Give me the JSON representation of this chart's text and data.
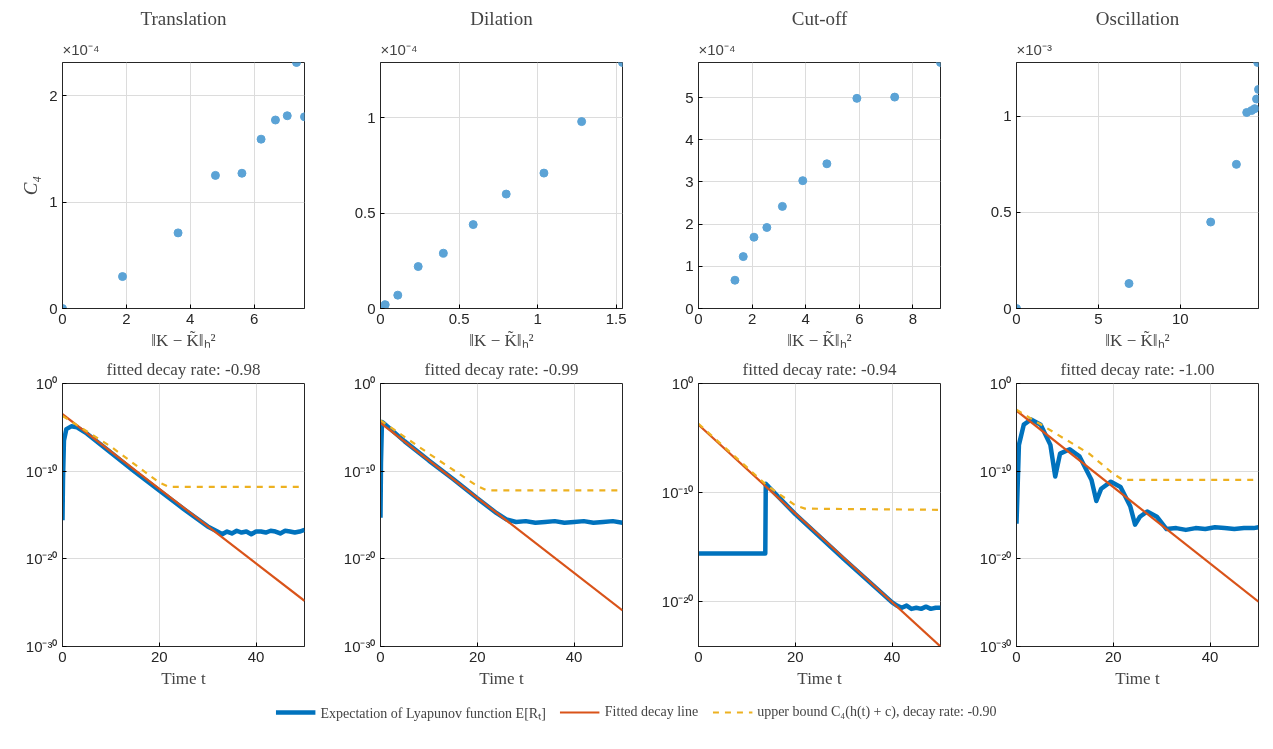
{
  "chart_data": [
    {
      "type": "scatter",
      "title": "Translation",
      "ylabel": "C₄",
      "xlabel": "‖K − K̃‖ₕ²",
      "annotations": [
        "×10⁻⁴"
      ],
      "marker": "circle",
      "grid": true,
      "xlim": [
        0,
        7.58
      ],
      "xticks": [
        0,
        2,
        4,
        6
      ],
      "ylim": [
        0,
        2.31
      ],
      "yticks": [
        0,
        1,
        2
      ],
      "series": [
        {
          "color": "#5ba3d6",
          "x": [
            0,
            1.88,
            3.62,
            4.79,
            5.62,
            6.22,
            6.67,
            7.04,
            7.33,
            7.58
          ],
          "values": [
            0,
            0.3,
            0.71,
            1.25,
            1.27,
            1.59,
            1.77,
            1.81,
            2.31,
            1.8
          ]
        }
      ]
    },
    {
      "type": "scatter",
      "title": "Dilation",
      "xlabel": "‖K − K̃‖ₕ²",
      "annotations": [
        "×10⁻⁴"
      ],
      "marker": "circle",
      "grid": true,
      "xlim": [
        0,
        1.54
      ],
      "xticks": [
        0,
        0.5,
        1,
        1.5
      ],
      "ylim": [
        0,
        1.29
      ],
      "yticks": [
        0,
        0.5,
        1
      ],
      "series": [
        {
          "color": "#5ba3d6",
          "x": [
            0,
            0.03,
            0.11,
            0.24,
            0.4,
            0.59,
            0.8,
            1.04,
            1.28,
            1.54
          ],
          "values": [
            0,
            0.02,
            0.07,
            0.22,
            0.29,
            0.44,
            0.6,
            0.71,
            0.98,
            1.29
          ]
        }
      ]
    },
    {
      "type": "scatter",
      "title": "Cut-off",
      "xlabel": "‖K − K̃‖ₕ²",
      "annotations": [
        "×10⁻⁴"
      ],
      "marker": "circle",
      "grid": true,
      "xlim": [
        0,
        9.03
      ],
      "xticks": [
        0,
        2,
        4,
        6,
        8
      ],
      "ylim": [
        0,
        5.83
      ],
      "yticks": [
        0,
        1,
        2,
        3,
        4,
        5
      ],
      "series": [
        {
          "color": "#5ba3d6",
          "x": [
            1.36,
            1.67,
            2.07,
            2.55,
            3.13,
            3.89,
            4.79,
            5.91,
            7.32,
            9.03
          ],
          "values": [
            0.67,
            1.23,
            1.69,
            1.92,
            2.42,
            3.03,
            3.43,
            4.98,
            5.01,
            5.83
          ]
        }
      ]
    },
    {
      "type": "scatter",
      "title": "Oscillation",
      "xlabel": "‖K − K̃‖ₕ²",
      "annotations": [
        "×10⁻³"
      ],
      "marker": "circle",
      "grid": true,
      "xlim": [
        0,
        14.78
      ],
      "xticks": [
        0,
        5,
        10
      ],
      "ylim": [
        0,
        1.28
      ],
      "yticks": [
        0,
        0.5,
        1
      ],
      "series": [
        {
          "color": "#5ba3d6",
          "x": [
            0,
            6.87,
            11.86,
            13.43,
            14.06,
            14.36,
            14.55,
            14.66,
            14.78,
            14.73
          ],
          "values": [
            0,
            0.13,
            0.45,
            0.75,
            1.02,
            1.03,
            1.04,
            1.09,
            1.14,
            1.28
          ]
        }
      ]
    },
    {
      "type": "line",
      "title": "fitted decay rate: -0.98",
      "xlabel": "Time t",
      "log": true,
      "grid": true,
      "legend": "bottom",
      "xlim": [
        0,
        50
      ],
      "xticks": [
        0,
        20,
        40
      ],
      "ylim": [
        1e-30,
        1
      ],
      "yticks": [
        {
          "value": 1e-30,
          "label": "10⁻³⁰"
        },
        {
          "value": 1e-20,
          "label": "10⁻²⁰"
        },
        {
          "value": 1e-10,
          "label": "10⁻¹⁰"
        },
        {
          "value": 1,
          "label": "10⁰"
        }
      ],
      "series": [
        {
          "name": "Expectation of Lyapunov function E[Rₜ]",
          "color": "#0072bd",
          "line_style": "solid",
          "x": [
            0,
            0.1,
            0.3,
            0.8,
            1.8,
            3,
            5,
            10,
            15,
            20,
            25,
            30,
            32,
            33,
            34,
            35,
            36,
            37,
            38,
            39,
            40,
            41,
            42,
            43,
            44,
            45,
            46,
            47,
            48,
            49,
            50
          ],
          "values": [
            2.5e-16,
            1e-11,
            3.2e-07,
            6.3e-06,
            1.3e-05,
            1e-05,
            2e-06,
            1.3e-08,
            7.9e-11,
            6.3e-13,
            5e-15,
            5e-17,
            1.3e-17,
            6.3e-18,
            1.3e-17,
            7.9e-18,
            1.6e-17,
            1e-17,
            1.3e-17,
            6.3e-18,
            1.3e-17,
            1.3e-17,
            1e-17,
            1.6e-17,
            1.3e-17,
            7.9e-18,
            1.6e-17,
            1.3e-17,
            1e-17,
            1.3e-17,
            2e-17
          ]
        },
        {
          "name": "Fitted decay line",
          "color": "#d95319",
          "line_style": "solid",
          "x": [
            0,
            50
          ],
          "values": [
            0.00032,
            1.6e-25
          ]
        },
        {
          "name": "upper bound C₄(h(t) + c), decay rate: -0.90",
          "color": "#edb120",
          "line_style": "dashed",
          "x": [
            0,
            10,
            20,
            22,
            50
          ],
          "values": [
            0.0002,
            6.3e-08,
            5e-12,
            1.6e-12,
            1.6e-12
          ]
        }
      ]
    },
    {
      "type": "line",
      "title": "fitted decay rate: -0.99",
      "xlabel": "Time t",
      "log": true,
      "grid": true,
      "xlim": [
        0,
        50
      ],
      "xticks": [
        0,
        20,
        40
      ],
      "ylim": [
        1e-30,
        1
      ],
      "yticks": [
        {
          "value": 1e-30,
          "label": "10⁻³⁰"
        },
        {
          "value": 1e-20,
          "label": "10⁻²⁰"
        },
        {
          "value": 1e-10,
          "label": "10⁻¹⁰"
        },
        {
          "value": 1,
          "label": "10⁰"
        }
      ],
      "series": [
        {
          "color": "#0072bd",
          "line_style": "solid",
          "x": [
            0,
            0.1,
            0.3,
            0.6,
            5,
            10,
            15,
            20,
            24,
            26,
            28,
            30,
            32,
            34,
            36,
            38,
            40,
            42,
            44,
            46,
            48,
            50
          ],
          "values": [
            5e-16,
            1e-09,
            4e-05,
            3.2e-05,
            2.5e-07,
            1.6e-09,
            1.3e-11,
            7.9e-14,
            1.6e-15,
            3.2e-16,
            1.6e-16,
            2e-16,
            1.3e-16,
            1.6e-16,
            2e-16,
            1.3e-16,
            1.6e-16,
            2e-16,
            1.3e-16,
            1.6e-16,
            2e-16,
            1.3e-16
          ]
        },
        {
          "color": "#d95319",
          "line_style": "solid",
          "x": [
            0,
            50
          ],
          "values": [
            3.2e-05,
            1.3e-26
          ]
        },
        {
          "color": "#edb120",
          "line_style": "dashed",
          "x": [
            0,
            10,
            20,
            22,
            50
          ],
          "values": [
            6.3e-05,
            1e-08,
            2e-12,
            6.3e-13,
            6.3e-13
          ]
        }
      ]
    },
    {
      "type": "line",
      "title": "fitted decay rate: -0.94",
      "xlabel": "Time t",
      "log": true,
      "grid": true,
      "xlim": [
        0,
        50
      ],
      "xticks": [
        0,
        20,
        40
      ],
      "ylim": [
        7e-25,
        1
      ],
      "yticks": [
        {
          "value": 1e-20,
          "label": "10⁻²⁰"
        },
        {
          "value": 1e-10,
          "label": "10⁻¹⁰"
        },
        {
          "value": 1,
          "label": "10⁰"
        }
      ],
      "series": [
        {
          "color": "#0072bd",
          "line_style": "solid",
          "x": [
            0,
            13.8,
            13.9,
            14.5,
            20,
            30,
            38,
            40,
            41,
            42,
            43,
            44,
            45,
            46,
            47,
            48,
            49,
            50
          ],
          "values": [
            2.5e-16,
            2.5e-16,
            6.3e-10,
            3.2e-10,
            1e-12,
            7.9e-17,
            5e-20,
            7.9e-21,
            4e-21,
            2.5e-21,
            4e-21,
            2e-21,
            2.5e-21,
            2e-21,
            3.2e-21,
            2e-21,
            2.5e-21,
            2.5e-21
          ]
        },
        {
          "color": "#d95319",
          "line_style": "solid",
          "x": [
            0,
            50
          ],
          "values": [
            0.00016,
            7e-25
          ]
        },
        {
          "color": "#edb120",
          "line_style": "dashed",
          "x": [
            0,
            14,
            20,
            22,
            50
          ],
          "values": [
            0.0002,
            5e-10,
            6.3e-12,
            3.2e-12,
            2.5e-12
          ]
        }
      ]
    },
    {
      "type": "line",
      "title": "fitted decay rate: -1.00",
      "xlabel": "Time t",
      "log": true,
      "grid": true,
      "xlim": [
        0,
        50
      ],
      "xticks": [
        0,
        20,
        40
      ],
      "ylim": [
        1e-30,
        1
      ],
      "yticks": [
        {
          "value": 1e-30,
          "label": "10⁻³⁰"
        },
        {
          "value": 1e-20,
          "label": "10⁻²⁰"
        },
        {
          "value": 1e-10,
          "label": "10⁻¹⁰"
        },
        {
          "value": 1,
          "label": "10⁰"
        }
      ],
      "series": [
        {
          "color": "#0072bd",
          "line_style": "solid",
          "x": [
            0,
            0.5,
            1.5,
            3,
            5,
            7,
            8,
            9,
            11,
            13,
            15.5,
            16.5,
            17.5,
            19.5,
            21.5,
            23.5,
            24.5,
            25.5,
            27,
            29,
            31,
            33,
            35,
            37,
            39,
            41,
            43,
            45,
            47,
            49,
            50
          ],
          "values": [
            1e-16,
            1e-07,
            2e-05,
            7.9e-05,
            2e-05,
            1e-07,
            2.5e-11,
            1e-08,
            3.2e-08,
            5e-09,
            1e-11,
            4e-14,
            1e-12,
            6.3e-12,
            1.6e-12,
            1e-14,
            7.9e-17,
            6.3e-16,
            2.5e-15,
            6.3e-16,
            2.5e-17,
            3.2e-17,
            2e-17,
            3.2e-17,
            2.5e-17,
            4e-17,
            3.2e-17,
            2.5e-17,
            3.2e-17,
            3.2e-17,
            4e-17
          ]
        },
        {
          "color": "#d95319",
          "line_style": "solid",
          "x": [
            0,
            50
          ],
          "values": [
            0.00079,
            1.3e-25
          ]
        },
        {
          "color": "#edb120",
          "line_style": "dashed",
          "x": [
            0,
            15,
            20,
            22,
            50
          ],
          "values": [
            0.001,
            1e-08,
            5e-11,
            1e-11,
            1e-11
          ]
        }
      ]
    }
  ]
}
